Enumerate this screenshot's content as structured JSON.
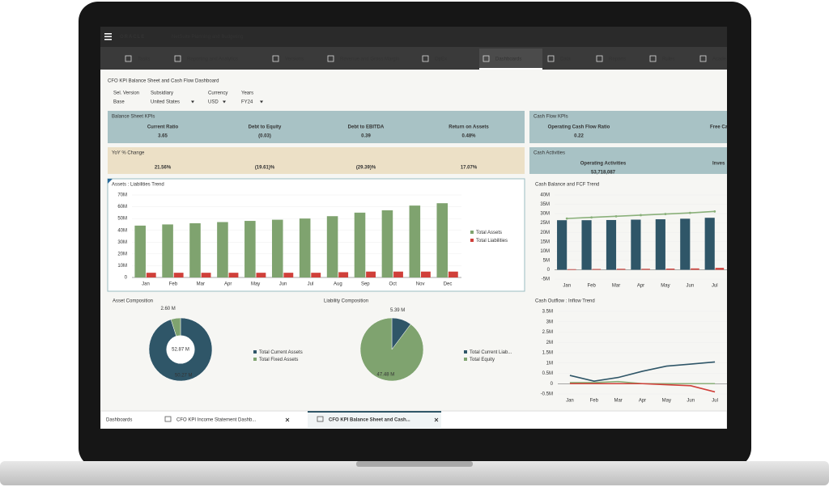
{
  "app": {
    "brand": "ORACLE",
    "product": "NetSuite Planning and Budgeting"
  },
  "nav": [
    "Tasks",
    "Reporting and Analytics",
    "Versions",
    "Revenue and Gross Margin",
    "OpEx",
    "Dashboards",
    "Data",
    "Reports",
    "Rules",
    "Acade"
  ],
  "nav_active": 5,
  "dashboard": {
    "title": "CFO KPI Balance Sheet and Cash Flow Dashboard",
    "filters": [
      {
        "label": "Sel. Version",
        "value": "Base"
      },
      {
        "label": "Subsidiary",
        "value": "United States"
      },
      {
        "label": "Currency",
        "value": "USD"
      },
      {
        "label": "Years",
        "value": "FY24"
      }
    ]
  },
  "panels": [
    {
      "title": "Balance Sheet KPIs",
      "color": "#a8c2c5",
      "items": [
        {
          "label": "Current Ratio",
          "value": "3.65"
        },
        {
          "label": "Debt to Equity",
          "value": "(0.03)",
          "color": "#d0403a"
        },
        {
          "label": "Debt to EBITDA",
          "value": "0.39",
          "color": "#d0403a"
        },
        {
          "label": "Return on Assets",
          "value": "0.48%"
        }
      ]
    },
    {
      "title": "YoY % Change",
      "color": "#ece0c6",
      "items": [
        {
          "value": "21.56%"
        },
        {
          "value": "(19.61)%",
          "color": "#d0403a"
        },
        {
          "value": "(29.39)%",
          "color": "#d0403a"
        },
        {
          "value": "17.07%"
        }
      ]
    },
    {
      "title": "Cash Flow KPIs",
      "color": "#a8c2c5",
      "items": [
        {
          "label": "Operating Cash Flow Ratio",
          "value": "0.22"
        },
        {
          "label": "Free Ca"
        }
      ]
    },
    {
      "title": "Cash Activities",
      "color": "#a8c2c5",
      "items": [
        {
          "label": "Operating Activities",
          "value": "53,718,087"
        },
        {
          "label": "Inves"
        }
      ]
    }
  ],
  "chart_data": [
    {
      "type": "bar",
      "title": "Assets : Liabilities Trend",
      "categories": [
        "Jan",
        "Feb",
        "Mar",
        "Apr",
        "May",
        "Jun",
        "Jul",
        "Aug",
        "Sep",
        "Oct",
        "Nov",
        "Dec"
      ],
      "series": [
        {
          "name": "Total Assets",
          "color": "#7fa36f",
          "values": [
            44,
            45,
            46,
            47,
            48,
            49,
            50,
            52,
            55,
            57,
            61,
            63
          ]
        },
        {
          "name": "Total Liabilities",
          "color": "#d0403a",
          "values": [
            4,
            4,
            4,
            4,
            4,
            4,
            4,
            4.5,
            5,
            5,
            5,
            5
          ]
        }
      ],
      "ylim": [
        0,
        70
      ],
      "yticks": [
        0,
        {
          "value": 10,
          "label": "10M"
        },
        {
          "value": 20,
          "label": "20M"
        },
        {
          "value": 30,
          "label": "30M"
        },
        {
          "value": 40,
          "label": "40M"
        },
        {
          "value": 50,
          "label": "50M"
        },
        {
          "value": 60,
          "label": "60M"
        },
        {
          "value": 70,
          "label": "70M"
        }
      ],
      "legend": "right"
    },
    {
      "type": "bar",
      "title": "Cash Balance and FCF Trend",
      "categories": [
        "Jan",
        "Feb",
        "Mar",
        "Apr",
        "May",
        "Jun",
        "Jul"
      ],
      "series": [
        {
          "type": "bar",
          "color": "#2f5668",
          "values": [
            26.5,
            26.5,
            26.6,
            26.8,
            27,
            27.3,
            27.8
          ]
        },
        {
          "type": "bar",
          "color": "#d0403a",
          "values": [
            0.3,
            0.4,
            0.5,
            0.5,
            0.6,
            0.7,
            1
          ]
        },
        {
          "type": "line",
          "color": "#8ab07a",
          "values": [
            27.4,
            28,
            28.6,
            29.2,
            29.8,
            30.4,
            31.2
          ]
        }
      ],
      "ylim": [
        -5,
        40
      ],
      "yticks": [
        {
          "value": -5,
          "label": "-5M"
        },
        0,
        {
          "value": 5,
          "label": "5M"
        },
        {
          "value": 10,
          "label": "10M"
        },
        {
          "value": 15,
          "label": "15M"
        },
        {
          "value": 20,
          "label": "20M"
        },
        {
          "value": 25,
          "label": "25M"
        },
        {
          "value": 30,
          "label": "30M"
        },
        {
          "value": 35,
          "label": "35M"
        },
        {
          "value": 40,
          "label": "40M"
        }
      ]
    },
    {
      "type": "pie",
      "title": "Asset Composition",
      "donut": true,
      "center_label": "52.87 M",
      "categories": [
        "Total Current Assets",
        "Total Fixed Assets"
      ],
      "values": [
        50.27,
        2.6
      ],
      "value_labels": [
        "50.27 M",
        "2.60 M"
      ],
      "colors": [
        "#2f5668",
        "#7fa36f"
      ]
    },
    {
      "type": "pie",
      "title": "Liability Composition",
      "categories": [
        "Total Current Liab...",
        "Total Equity"
      ],
      "values": [
        5.39,
        47.48
      ],
      "value_labels": [
        "5.39 M",
        "47.48 M"
      ],
      "colors": [
        "#2f5668",
        "#7fa36f"
      ]
    },
    {
      "type": "line",
      "title": "Cash Outflow : Inflow Trend",
      "categories": [
        "Jan",
        "Feb",
        "Mar",
        "Apr",
        "May",
        "Jun",
        "Jul"
      ],
      "series": [
        {
          "color": "#2f5668",
          "values": [
            0.4,
            0.12,
            0.3,
            0.6,
            0.85,
            0.95,
            1.05
          ]
        },
        {
          "color": "#8ab07a",
          "values": [
            0.05,
            0.05,
            0.1,
            0,
            0,
            0,
            0
          ]
        },
        {
          "color": "#d0403a",
          "values": [
            0,
            0,
            0,
            0,
            -0.05,
            -0.1,
            -0.4
          ]
        }
      ],
      "ylim": [
        -0.5,
        3.5
      ],
      "yticks": [
        {
          "value": -0.5,
          "label": "-0.5M"
        },
        0,
        {
          "value": 0.5,
          "label": "0.5M"
        },
        {
          "value": 1,
          "label": "1M"
        },
        {
          "value": 1.5,
          "label": "1.5M"
        },
        {
          "value": 2,
          "label": "2M"
        },
        {
          "value": 2.5,
          "label": "2.5M"
        },
        {
          "value": 3,
          "label": "3M"
        },
        {
          "value": 3.5,
          "label": "3.5M"
        }
      ]
    }
  ],
  "tabs": [
    "Dashboards",
    "CFO KPI Income Statement Dashb...",
    "CFO KPI Balance Sheet and Cash..."
  ],
  "tab_active": 2
}
